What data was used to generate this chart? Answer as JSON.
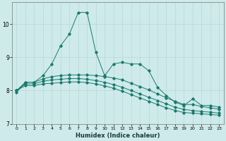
{
  "xlabel": "Humidex (Indice chaleur)",
  "background_color": "#ceeaea",
  "grid_color": "#b8d8d8",
  "line_color": "#1a7a6e",
  "xlim": [
    -0.5,
    23.5
  ],
  "ylim": [
    7.0,
    10.65
  ],
  "yticks": [
    7,
    8,
    9,
    10
  ],
  "xticks": [
    0,
    1,
    2,
    3,
    4,
    5,
    6,
    7,
    8,
    9,
    10,
    11,
    12,
    13,
    14,
    15,
    16,
    17,
    18,
    19,
    20,
    21,
    22,
    23
  ],
  "line1_y": [
    7.95,
    8.25,
    8.25,
    8.45,
    8.8,
    9.35,
    9.7,
    10.35,
    10.35,
    9.15,
    8.45,
    8.8,
    8.85,
    8.8,
    8.8,
    8.6,
    8.1,
    7.85,
    7.65,
    7.55,
    7.75,
    7.55,
    7.55,
    7.5
  ],
  "line2_y": [
    8.0,
    8.25,
    8.25,
    8.35,
    8.42,
    8.45,
    8.47,
    8.47,
    8.47,
    8.45,
    8.42,
    8.38,
    8.32,
    8.22,
    8.12,
    8.02,
    7.9,
    7.78,
    7.68,
    7.58,
    7.58,
    7.52,
    7.48,
    7.44
  ],
  "line3_y": [
    8.0,
    8.2,
    8.2,
    8.28,
    8.32,
    8.34,
    8.36,
    8.36,
    8.34,
    8.3,
    8.25,
    8.18,
    8.1,
    8.0,
    7.9,
    7.8,
    7.7,
    7.6,
    7.5,
    7.43,
    7.4,
    7.37,
    7.35,
    7.32
  ],
  "line4_y": [
    8.0,
    8.15,
    8.15,
    8.2,
    8.22,
    8.24,
    8.26,
    8.26,
    8.24,
    8.2,
    8.14,
    8.07,
    7.98,
    7.88,
    7.78,
    7.68,
    7.58,
    7.48,
    7.4,
    7.34,
    7.32,
    7.3,
    7.28,
    7.26
  ]
}
